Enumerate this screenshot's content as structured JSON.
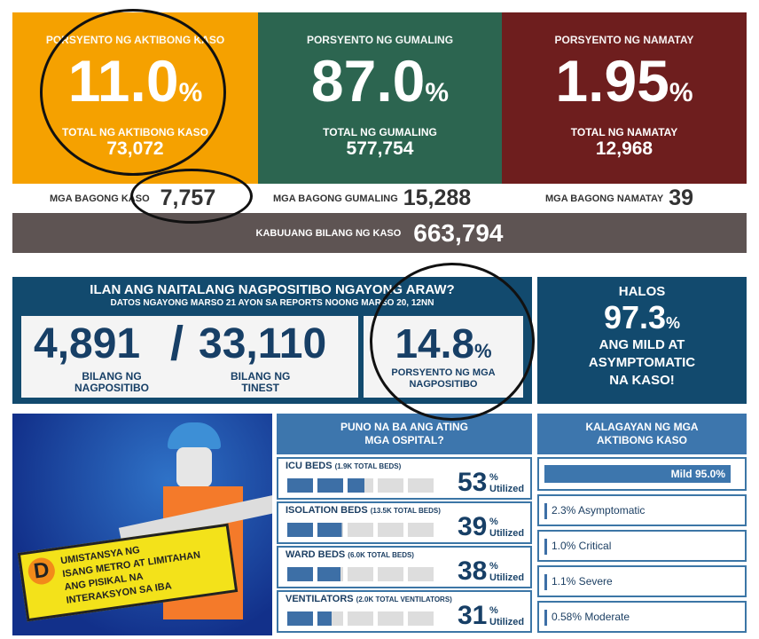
{
  "active": {
    "label": "PORSYENTO NG AKTIBONG KASO",
    "percent": "11.0",
    "pct_sign": "%",
    "total_label": "TOTAL NG AKTIBONG KASO",
    "total": "73,072",
    "new_label": "MGA BAGONG KASO",
    "new": "7,757",
    "color": "#f5a100"
  },
  "recovered": {
    "label": "PORSYENTO NG GUMALING",
    "percent": "87.0",
    "pct_sign": "%",
    "total_label": "TOTAL NG GUMALING",
    "total": "577,754",
    "new_label": "MGA BAGONG GUMALING",
    "new": "15,288",
    "color": "#2c6550"
  },
  "deaths": {
    "label": "PORSYENTO NG NAMATAY",
    "percent": "1.95",
    "pct_sign": "%",
    "total_label": "TOTAL NG NAMATAY",
    "total": "12,968",
    "new_label": "MGA BAGONG NAMATAY",
    "new": "39",
    "color": "#6e1e1e"
  },
  "total": {
    "label": "KABUUANG BILANG NG KASO",
    "value": "663,794"
  },
  "testing": {
    "title": "ILAN ANG NAITALANG NAGPOSITIBO NGAYONG ARAW?",
    "subtitle": "DATOS NGAYONG MARSO 21 AYON SA REPORTS NOONG MARSO 20, 12NN",
    "positive": "4,891",
    "positive_label1": "BILANG NG",
    "positive_label2": "NAGPOSITIBO",
    "slash": "/",
    "tested": "33,110",
    "tested_label1": "BILANG NG",
    "tested_label2": "TINEST",
    "rate": "14.8",
    "rate_sign": "%",
    "rate_label1": "PORSYENTO NG MGA",
    "rate_label2": "NAGPOSITIBO"
  },
  "mild": {
    "l1": "HALOS",
    "value": "97.3",
    "sign": "%",
    "l2": "ANG MILD AT",
    "l3": "ASYMPTOMATIC",
    "l4": "NA KASO!"
  },
  "poster": {
    "l1": "UMISTANSYA NG",
    "l2": "ISANG METRO AT LIMITAHAN",
    "l3": "ANG PISIKAL NA",
    "l4": "INTERAKSYON SA IBA",
    "initial": "D"
  },
  "hospital": {
    "title1": "PUNO NA BA ANG ATING",
    "title2": "MGA OSPITAL?",
    "pct_sign": "%",
    "utilized": "Utilized",
    "items": [
      {
        "name": "ICU BEDS",
        "detail": "(1.9K TOTAL BEDS)",
        "value": "53",
        "fraction": 0.53
      },
      {
        "name": "ISOLATION BEDS",
        "detail": "(13.5K TOTAL BEDS)",
        "value": "39",
        "fraction": 0.39
      },
      {
        "name": "WARD BEDS",
        "detail": "(6.0K TOTAL BEDS)",
        "value": "38",
        "fraction": 0.38
      },
      {
        "name": "VENTILATORS",
        "detail": "(2.0K TOTAL VENTILATORS)",
        "value": "31",
        "fraction": 0.31
      }
    ]
  },
  "status": {
    "title1": "KALAGAYAN NG MGA",
    "title2": "AKTIBONG KASO",
    "mild": "Mild 95.0%",
    "items": [
      "2.3% Asymptomatic",
      "1.0% Critical",
      "1.1% Severe",
      "0.58% Moderate"
    ]
  }
}
